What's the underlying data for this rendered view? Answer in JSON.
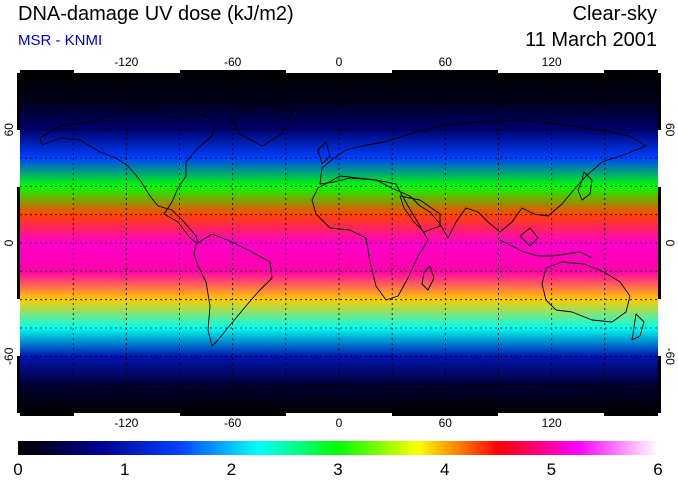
{
  "header": {
    "title": "DNA-damage UV dose (kJ/m2)",
    "credit": "MSR - KNMI",
    "sky_condition": "Clear-sky",
    "date": "11 March 2001"
  },
  "axes": {
    "lon_ticks": [
      "-120",
      "-60",
      "0",
      "60",
      "120"
    ],
    "lat_ticks": [
      "60",
      "0",
      "-60"
    ]
  },
  "colorbar": {
    "labels": [
      "0",
      "1",
      "2",
      "3",
      "4",
      "5",
      "6"
    ],
    "min": 0,
    "max": 6,
    "stops": [
      "#000000",
      "#00008a",
      "#0040ff",
      "#00ffff",
      "#00ff00",
      "#ffff00",
      "#ff0000",
      "#ff00ff",
      "#ffffff"
    ]
  },
  "colors": {
    "credit_text": "#0000cc"
  },
  "field_profile": {
    "lat": [
      90,
      75,
      60,
      45,
      30,
      15,
      0,
      -15,
      -30,
      -45,
      -60,
      -75,
      -90
    ],
    "value": [
      0.0,
      0.15,
      0.6,
      1.5,
      3.0,
      4.3,
      5.1,
      5.0,
      3.9,
      2.3,
      1.0,
      0.3,
      0.0
    ]
  }
}
